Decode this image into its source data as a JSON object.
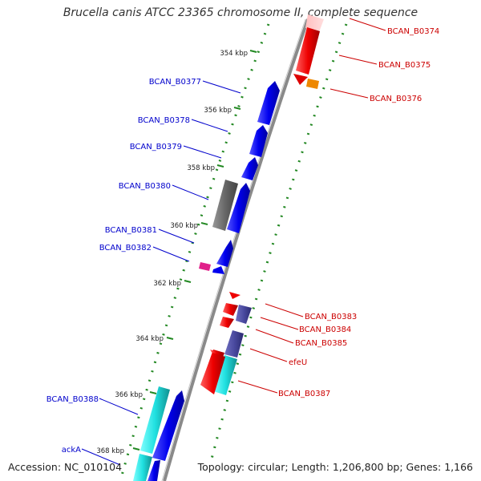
{
  "title": "Brucella canis ATCC 23365 chromosome II, complete sequence",
  "accession": "Accession: NC_010104",
  "topology": "Topology: circular; Length: 1,206,800 bp; Genes: 1,166",
  "scale": {
    "unit": "kbp",
    "ticks": [
      "354 kbp",
      "356 kbp",
      "358 kbp",
      "360 kbp",
      "362 kbp",
      "364 kbp",
      "366 kbp",
      "368 kbp"
    ]
  },
  "colors": {
    "forward_gene": "#0000ee",
    "reverse_gene": "#ee0000",
    "pseudogene": "#666666",
    "cyan_feature": "#22e0e0",
    "magenta_feature": "#e0208a",
    "orange_feature": "#ee8800",
    "navy_feature": "#4a4aa0",
    "backbone": "#888888",
    "tick_dots": "#228822",
    "left_label": "#0000cc",
    "right_label": "#cc0000"
  },
  "labels_left": [
    "BCAN_B0377",
    "BCAN_B0378",
    "BCAN_B0379",
    "BCAN_B0380",
    "BCAN_B0381",
    "BCAN_B0382",
    "BCAN_B0388",
    "ackA"
  ],
  "labels_right": [
    "BCAN_B0374",
    "BCAN_B0375",
    "BCAN_B0376",
    "BCAN_B0383",
    "BCAN_B0384",
    "BCAN_B0385",
    "efeU",
    "BCAN_B0387"
  ]
}
